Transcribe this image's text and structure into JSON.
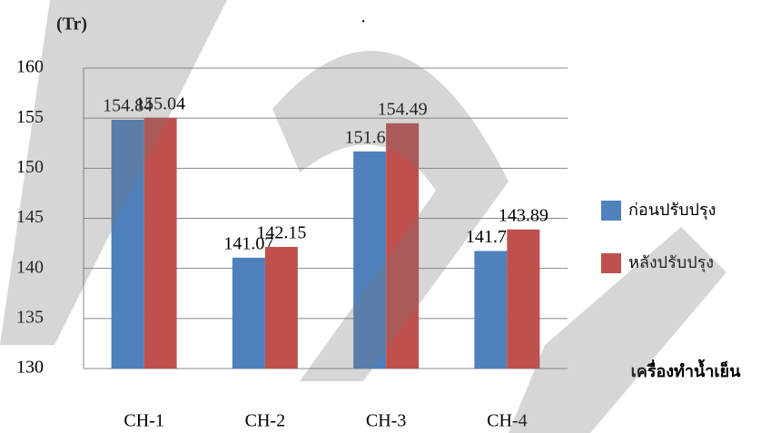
{
  "chart_data": {
    "type": "bar",
    "title": ".",
    "y_label": "(Tr)",
    "x_label": "เครื่องทำน้ำเย็น",
    "categories": [
      "CH-1",
      "CH-2",
      "CH-3",
      "CH-4"
    ],
    "series": [
      {
        "name": "ก่อนปรับปรุง",
        "color": "#4f81bd",
        "values": [
          154.84,
          141.07,
          151.68,
          141.74
        ]
      },
      {
        "name": "หลังปรับปรุง",
        "color": "#c0504d",
        "values": [
          155.04,
          142.15,
          154.49,
          143.89
        ]
      }
    ],
    "ylim": [
      130,
      160
    ],
    "yticks": [
      130,
      135,
      140,
      145,
      150,
      155,
      160
    ],
    "grid": true,
    "legend": "right"
  }
}
